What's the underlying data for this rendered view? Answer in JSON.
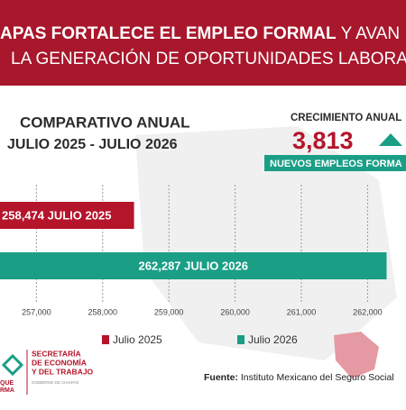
{
  "header": {
    "line1_bold": "APAS FORTALECE EL EMPLEO FORMAL",
    "line1_rest": "Y AVAN",
    "line2": "LA GENERACIÓN DE OPORTUNIDADES LABORA"
  },
  "chart_data": {
    "type": "bar",
    "orientation": "horizontal",
    "title": "COMPARATIVO ANUAL",
    "subtitle": "JULIO 2025 - JULIO 2026",
    "series": [
      {
        "name": "Julio 2025",
        "color": "#b5152b",
        "values": [
          258474
        ],
        "value_labels": [
          "258,474 JULIO 2025"
        ]
      },
      {
        "name": "Julio 2026",
        "color": "#1a9e86",
        "values": [
          262287
        ],
        "value_labels": [
          "262,287 JULIO 2026"
        ]
      }
    ],
    "xlim": [
      256450,
      262580
    ],
    "xticks": [
      {
        "value": 257000,
        "label": "257,000"
      },
      {
        "value": 258000,
        "label": "258,000"
      },
      {
        "value": 259000,
        "label": "259,000"
      },
      {
        "value": 260000,
        "label": "260,000"
      },
      {
        "value": 261000,
        "label": "261,000"
      },
      {
        "value": 262000,
        "label": "262,000"
      }
    ]
  },
  "growth": {
    "title": "CRECIMIENTO ANUAL",
    "value": "3,813",
    "caption": "NUEVOS EMPLEOS FORMA"
  },
  "source": {
    "label": "Fuente:",
    "text": "Instituto Mexicano del Seguro Social"
  },
  "logo": {
    "line1": "SECRETARÍA",
    "line2": "DE ECONOMÍA",
    "line3": "Y DEL TRABAJO",
    "small": "GOBIERNO DE CHIAPAS",
    "left1": "QUE",
    "left2": "RMA"
  }
}
